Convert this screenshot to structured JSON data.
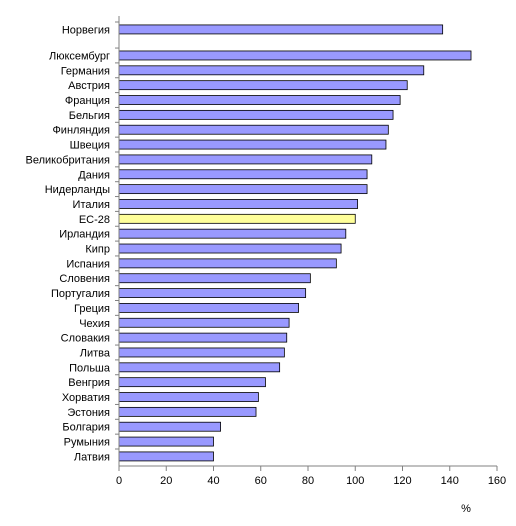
{
  "chart_data": {
    "type": "bar",
    "orientation": "horizontal",
    "categories": [
      "Норвегия",
      "Люксембург",
      "Германия",
      "Австрия",
      "Франция",
      "Бельгия",
      "Финляндия",
      "Швеция",
      "Великобритания",
      "Дания",
      "Нидерланды",
      "Италия",
      "ЕС-28",
      "Ирландия",
      "Кипр",
      "Испания",
      "Словения",
      "Португалия",
      "Греция",
      "Чехия",
      "Словакия",
      "Литва",
      "Польша",
      "Венгрия",
      "Хорватия",
      "Эстония",
      "Болгария",
      "Румыния",
      "Латвия"
    ],
    "values": [
      137,
      149,
      129,
      122,
      119,
      116,
      114,
      113,
      107,
      105,
      105,
      101,
      100,
      96,
      94,
      92,
      81,
      79,
      76,
      72,
      71,
      70,
      68,
      62,
      59,
      58,
      43,
      40,
      40
    ],
    "highlight_category": "ЕС-28",
    "group_gap_after_index": 0,
    "xlim": [
      0,
      160
    ],
    "xticks": [
      "0",
      "20",
      "40",
      "60",
      "80",
      "100",
      "120",
      "140",
      "160"
    ],
    "xlabel": "%",
    "colors": {
      "bar": "#9999ff",
      "highlight": "#ffff99",
      "bar_edge": "#000000",
      "axis": "#808080"
    },
    "grid": false,
    "legend": "none"
  }
}
